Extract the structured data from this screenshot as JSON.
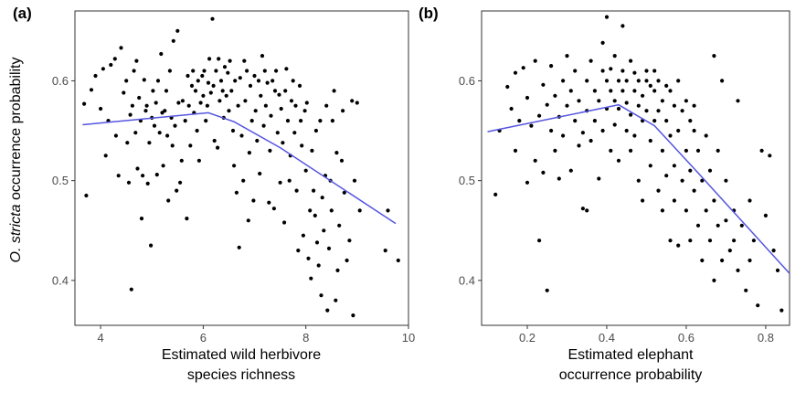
{
  "colors": {
    "point": "#000000",
    "fit_line": "#5555e0",
    "panel_border": "#333333",
    "tick": "#333333"
  },
  "ylabel": {
    "italic": "O. stricta",
    "rest": " occurrence probability"
  },
  "chart_data": [
    {
      "type": "scatter",
      "panel_label": "(a)",
      "xlabel_lines": [
        "Estimated wild herbivore",
        "species richness"
      ],
      "ylabel": "O. stricta occurrence probability",
      "xlim": [
        3.5,
        10.0
      ],
      "ylim": [
        0.355,
        0.67
      ],
      "x_ticks": [
        4,
        6,
        8,
        10
      ],
      "y_ticks": [
        0.4,
        0.5,
        0.6
      ],
      "x_tick_labels": [
        "4",
        "6",
        "8",
        "10"
      ],
      "y_tick_labels": [
        "0.4",
        "0.5",
        "0.6"
      ],
      "grid": false,
      "fit_line": {
        "x": [
          3.65,
          6.1,
          6.6,
          7.5,
          9.75
        ],
        "y": [
          0.556,
          0.568,
          0.559,
          0.533,
          0.457
        ]
      },
      "points": [
        [
          3.68,
          0.577
        ],
        [
          3.72,
          0.485
        ],
        [
          3.82,
          0.591
        ],
        [
          3.9,
          0.605
        ],
        [
          4.0,
          0.572
        ],
        [
          4.05,
          0.612
        ],
        [
          4.1,
          0.525
        ],
        [
          4.15,
          0.56
        ],
        [
          4.2,
          0.616
        ],
        [
          4.28,
          0.622
        ],
        [
          4.3,
          0.545
        ],
        [
          4.35,
          0.505
        ],
        [
          4.4,
          0.633
        ],
        [
          4.45,
          0.588
        ],
        [
          4.5,
          0.6
        ],
        [
          4.52,
          0.538
        ],
        [
          4.55,
          0.498
        ],
        [
          4.58,
          0.566
        ],
        [
          4.6,
          0.391
        ],
        [
          4.62,
          0.575
        ],
        [
          4.65,
          0.61
        ],
        [
          4.68,
          0.548
        ],
        [
          4.7,
          0.62
        ],
        [
          4.72,
          0.512
        ],
        [
          4.75,
          0.583
        ],
        [
          4.78,
          0.56
        ],
        [
          4.8,
          0.462
        ],
        [
          4.82,
          0.505
        ],
        [
          4.85,
          0.601
        ],
        [
          4.88,
          0.57
        ],
        [
          4.9,
          0.575
        ],
        [
          4.92,
          0.497
        ],
        [
          4.95,
          0.538
        ],
        [
          4.98,
          0.435
        ],
        [
          5.0,
          0.563
        ],
        [
          5.02,
          0.59
        ],
        [
          5.05,
          0.555
        ],
        [
          5.08,
          0.578
        ],
        [
          5.1,
          0.506
        ],
        [
          5.12,
          0.6
        ],
        [
          5.15,
          0.548
        ],
        [
          5.18,
          0.627
        ],
        [
          5.2,
          0.568
        ],
        [
          5.22,
          0.515
        ],
        [
          5.25,
          0.57
        ],
        [
          5.28,
          0.59
        ],
        [
          5.3,
          0.545
        ],
        [
          5.32,
          0.48
        ],
        [
          5.35,
          0.61
        ],
        [
          5.38,
          0.563
        ],
        [
          5.4,
          0.535
        ],
        [
          5.42,
          0.64
        ],
        [
          5.45,
          0.555
        ],
        [
          5.48,
          0.49
        ],
        [
          5.5,
          0.65
        ],
        [
          5.52,
          0.578
        ],
        [
          5.55,
          0.498
        ],
        [
          5.58,
          0.52
        ],
        [
          5.6,
          0.58
        ],
        [
          5.65,
          0.56
        ],
        [
          5.68,
          0.462
        ],
        [
          5.7,
          0.605
        ],
        [
          5.72,
          0.575
        ],
        [
          5.75,
          0.535
        ],
        [
          5.78,
          0.595
        ],
        [
          5.8,
          0.61
        ],
        [
          5.82,
          0.568
        ],
        [
          5.85,
          0.59
        ],
        [
          5.88,
          0.55
        ],
        [
          5.9,
          0.6
        ],
        [
          5.92,
          0.52
        ],
        [
          5.95,
          0.578
        ],
        [
          5.98,
          0.605
        ],
        [
          6.0,
          0.585
        ],
        [
          6.02,
          0.61
        ],
        [
          6.05,
          0.56
        ],
        [
          6.08,
          0.575
        ],
        [
          6.1,
          0.598
        ],
        [
          6.12,
          0.622
        ],
        [
          6.15,
          0.588
        ],
        [
          6.18,
          0.662
        ],
        [
          6.2,
          0.595
        ],
        [
          6.22,
          0.54
        ],
        [
          6.25,
          0.61
        ],
        [
          6.28,
          0.533
        ],
        [
          6.3,
          0.622
        ],
        [
          6.32,
          0.58
        ],
        [
          6.35,
          0.6
        ],
        [
          6.38,
          0.59
        ],
        [
          6.4,
          0.563
        ],
        [
          6.42,
          0.614
        ],
        [
          6.45,
          0.585
        ],
        [
          6.48,
          0.608
        ],
        [
          6.5,
          0.57
        ],
        [
          6.52,
          0.62
        ],
        [
          6.55,
          0.59
        ],
        [
          6.58,
          0.55
        ],
        [
          6.6,
          0.515
        ],
        [
          6.62,
          0.6
        ],
        [
          6.65,
          0.488
        ],
        [
          6.68,
          0.575
        ],
        [
          6.7,
          0.433
        ],
        [
          6.72,
          0.603
        ],
        [
          6.75,
          0.545
        ],
        [
          6.78,
          0.5
        ],
        [
          6.8,
          0.62
        ],
        [
          6.82,
          0.58
        ],
        [
          6.85,
          0.61
        ],
        [
          6.88,
          0.46
        ],
        [
          6.9,
          0.528
        ],
        [
          6.92,
          0.595
        ],
        [
          6.95,
          0.56
        ],
        [
          6.98,
          0.48
        ],
        [
          7.0,
          0.605
        ],
        [
          7.02,
          0.57
        ],
        [
          7.05,
          0.54
        ],
        [
          7.08,
          0.6
        ],
        [
          7.1,
          0.507
        ],
        [
          7.12,
          0.585
        ],
        [
          7.15,
          0.625
        ],
        [
          7.18,
          0.555
        ],
        [
          7.2,
          0.61
        ],
        [
          7.22,
          0.575
        ],
        [
          7.25,
          0.598
        ],
        [
          7.28,
          0.478
        ],
        [
          7.3,
          0.53
        ],
        [
          7.32,
          0.565
        ],
        [
          7.35,
          0.6
        ],
        [
          7.38,
          0.472
        ],
        [
          7.4,
          0.59
        ],
        [
          7.42,
          0.61
        ],
        [
          7.45,
          0.548
        ],
        [
          7.48,
          0.586
        ],
        [
          7.5,
          0.498
        ],
        [
          7.52,
          0.572
        ],
        [
          7.55,
          0.538
        ],
        [
          7.58,
          0.458
        ],
        [
          7.6,
          0.59
        ],
        [
          7.62,
          0.612
        ],
        [
          7.65,
          0.56
        ],
        [
          7.68,
          0.5
        ],
        [
          7.7,
          0.525
        ],
        [
          7.72,
          0.58
        ],
        [
          7.75,
          0.6
        ],
        [
          7.78,
          0.548
        ],
        [
          7.8,
          0.575
        ],
        [
          7.82,
          0.49
        ],
        [
          7.85,
          0.43
        ],
        [
          7.88,
          0.595
        ],
        [
          7.9,
          0.56
        ],
        [
          7.92,
          0.535
        ],
        [
          7.95,
          0.445
        ],
        [
          7.98,
          0.57
        ],
        [
          8.0,
          0.51
        ],
        [
          8.02,
          0.578
        ],
        [
          8.05,
          0.422
        ],
        [
          8.08,
          0.47
        ],
        [
          8.1,
          0.402
        ],
        [
          8.12,
          0.53
        ],
        [
          8.15,
          0.49
        ],
        [
          8.18,
          0.465
        ],
        [
          8.2,
          0.55
        ],
        [
          8.22,
          0.438
        ],
        [
          8.25,
          0.415
        ],
        [
          8.28,
          0.56
        ],
        [
          8.3,
          0.385
        ],
        [
          8.32,
          0.483
        ],
        [
          8.35,
          0.45
        ],
        [
          8.38,
          0.505
        ],
        [
          8.4,
          0.575
        ],
        [
          8.42,
          0.37
        ],
        [
          8.45,
          0.432
        ],
        [
          8.48,
          0.5
        ],
        [
          8.5,
          0.47
        ],
        [
          8.52,
          0.56
        ],
        [
          8.55,
          0.59
        ],
        [
          8.58,
          0.38
        ],
        [
          8.6,
          0.528
        ],
        [
          8.62,
          0.41
        ],
        [
          8.65,
          0.455
        ],
        [
          8.7,
          0.52
        ],
        [
          8.72,
          0.57
        ],
        [
          8.75,
          0.488
        ],
        [
          8.8,
          0.42
        ],
        [
          8.85,
          0.44
        ],
        [
          8.9,
          0.58
        ],
        [
          8.92,
          0.365
        ],
        [
          8.95,
          0.5
        ],
        [
          9.0,
          0.578
        ],
        [
          9.05,
          0.47
        ],
        [
          9.55,
          0.43
        ],
        [
          9.6,
          0.47
        ],
        [
          9.8,
          0.42
        ]
      ]
    },
    {
      "type": "scatter",
      "panel_label": "(b)",
      "xlabel_lines": [
        "Estimated elephant",
        "occurrence probability"
      ],
      "ylabel": "",
      "xlim": [
        0.085,
        0.86
      ],
      "ylim": [
        0.355,
        0.67
      ],
      "x_ticks": [
        0.2,
        0.4,
        0.6,
        0.8
      ],
      "y_ticks": [
        0.4,
        0.5,
        0.6
      ],
      "x_tick_labels": [
        "0.2",
        "0.4",
        "0.6",
        "0.8"
      ],
      "y_tick_labels": [
        "0.4",
        "0.5",
        "0.6"
      ],
      "grid": false,
      "fit_line": {
        "x": [
          0.1,
          0.43,
          0.52,
          0.62,
          0.86
        ],
        "y": [
          0.549,
          0.576,
          0.555,
          0.512,
          0.407
        ]
      },
      "points": [
        [
          0.12,
          0.486
        ],
        [
          0.13,
          0.55
        ],
        [
          0.15,
          0.594
        ],
        [
          0.16,
          0.572
        ],
        [
          0.17,
          0.608
        ],
        [
          0.17,
          0.53
        ],
        [
          0.18,
          0.56
        ],
        [
          0.19,
          0.613
        ],
        [
          0.2,
          0.583
        ],
        [
          0.2,
          0.498
        ],
        [
          0.21,
          0.555
        ],
        [
          0.22,
          0.62
        ],
        [
          0.22,
          0.52
        ],
        [
          0.23,
          0.565
        ],
        [
          0.23,
          0.44
        ],
        [
          0.24,
          0.596
        ],
        [
          0.24,
          0.508
        ],
        [
          0.25,
          0.39
        ],
        [
          0.25,
          0.576
        ],
        [
          0.26,
          0.55
        ],
        [
          0.26,
          0.615
        ],
        [
          0.27,
          0.53
        ],
        [
          0.27,
          0.585
        ],
        [
          0.28,
          0.564
        ],
        [
          0.28,
          0.502
        ],
        [
          0.29,
          0.6
        ],
        [
          0.29,
          0.545
        ],
        [
          0.3,
          0.575
        ],
        [
          0.3,
          0.625
        ],
        [
          0.31,
          0.51
        ],
        [
          0.31,
          0.59
        ],
        [
          0.32,
          0.56
        ],
        [
          0.32,
          0.61
        ],
        [
          0.33,
          0.535
        ],
        [
          0.33,
          0.58
        ],
        [
          0.34,
          0.548
        ],
        [
          0.34,
          0.472
        ],
        [
          0.35,
          0.57
        ],
        [
          0.35,
          0.6
        ],
        [
          0.35,
          0.47
        ],
        [
          0.36,
          0.54
        ],
        [
          0.36,
          0.62
        ],
        [
          0.37,
          0.59
        ],
        [
          0.37,
          0.56
        ],
        [
          0.38,
          0.58
        ],
        [
          0.38,
          0.502
        ],
        [
          0.39,
          0.61
        ],
        [
          0.39,
          0.55
        ],
        [
          0.39,
          0.638
        ],
        [
          0.4,
          0.572
        ],
        [
          0.4,
          0.6
        ],
        [
          0.4,
          0.664
        ],
        [
          0.41,
          0.59
        ],
        [
          0.41,
          0.53
        ],
        [
          0.41,
          0.612
        ],
        [
          0.42,
          0.58
        ],
        [
          0.42,
          0.556
        ],
        [
          0.42,
          0.625
        ],
        [
          0.43,
          0.6
        ],
        [
          0.43,
          0.572
        ],
        [
          0.43,
          0.52
        ],
        [
          0.44,
          0.59
        ],
        [
          0.44,
          0.61
        ],
        [
          0.44,
          0.655
        ],
        [
          0.45,
          0.578
        ],
        [
          0.45,
          0.55
        ],
        [
          0.45,
          0.6
        ],
        [
          0.46,
          0.62
        ],
        [
          0.46,
          0.566
        ],
        [
          0.46,
          0.53
        ],
        [
          0.47,
          0.59
        ],
        [
          0.47,
          0.608
        ],
        [
          0.47,
          0.545
        ],
        [
          0.48,
          0.575
        ],
        [
          0.48,
          0.6
        ],
        [
          0.48,
          0.5
        ],
        [
          0.49,
          0.585
        ],
        [
          0.49,
          0.56
        ],
        [
          0.49,
          0.48
        ],
        [
          0.5,
          0.6
        ],
        [
          0.5,
          0.57
        ],
        [
          0.5,
          0.61
        ],
        [
          0.51,
          0.595
        ],
        [
          0.51,
          0.54
        ],
        [
          0.51,
          0.515
        ],
        [
          0.52,
          0.59
        ],
        [
          0.52,
          0.56
        ],
        [
          0.52,
          0.61
        ],
        [
          0.53,
          0.57
        ],
        [
          0.53,
          0.49
        ],
        [
          0.53,
          0.6
        ],
        [
          0.54,
          0.58
        ],
        [
          0.54,
          0.53
        ],
        [
          0.54,
          0.47
        ],
        [
          0.55,
          0.595
        ],
        [
          0.55,
          0.56
        ],
        [
          0.55,
          0.505
        ],
        [
          0.56,
          0.59
        ],
        [
          0.56,
          0.545
        ],
        [
          0.56,
          0.44
        ],
        [
          0.57,
          0.575
        ],
        [
          0.57,
          0.515
        ],
        [
          0.57,
          0.48
        ],
        [
          0.58,
          0.6
        ],
        [
          0.58,
          0.55
        ],
        [
          0.58,
          0.435
        ],
        [
          0.59,
          0.57
        ],
        [
          0.59,
          0.5
        ],
        [
          0.6,
          0.58
        ],
        [
          0.6,
          0.53
        ],
        [
          0.6,
          0.47
        ],
        [
          0.61,
          0.56
        ],
        [
          0.61,
          0.44
        ],
        [
          0.61,
          0.51
        ],
        [
          0.62,
          0.575
        ],
        [
          0.62,
          0.49
        ],
        [
          0.62,
          0.55
        ],
        [
          0.63,
          0.53
        ],
        [
          0.63,
          0.455
        ],
        [
          0.64,
          0.5
        ],
        [
          0.64,
          0.42
        ],
        [
          0.65,
          0.545
        ],
        [
          0.65,
          0.47
        ],
        [
          0.66,
          0.51
        ],
        [
          0.66,
          0.44
        ],
        [
          0.67,
          0.625
        ],
        [
          0.67,
          0.48
        ],
        [
          0.67,
          0.4
        ],
        [
          0.68,
          0.53
        ],
        [
          0.68,
          0.455
        ],
        [
          0.69,
          0.6
        ],
        [
          0.69,
          0.42
        ],
        [
          0.7,
          0.5
        ],
        [
          0.7,
          0.46
        ],
        [
          0.71,
          0.43
        ],
        [
          0.72,
          0.44
        ],
        [
          0.72,
          0.47
        ],
        [
          0.73,
          0.58
        ],
        [
          0.73,
          0.41
        ],
        [
          0.74,
          0.455
        ],
        [
          0.75,
          0.39
        ],
        [
          0.76,
          0.42
        ],
        [
          0.76,
          0.48
        ],
        [
          0.77,
          0.44
        ],
        [
          0.78,
          0.375
        ],
        [
          0.79,
          0.53
        ],
        [
          0.8,
          0.465
        ],
        [
          0.81,
          0.525
        ],
        [
          0.82,
          0.43
        ],
        [
          0.83,
          0.41
        ],
        [
          0.84,
          0.37
        ]
      ]
    }
  ]
}
